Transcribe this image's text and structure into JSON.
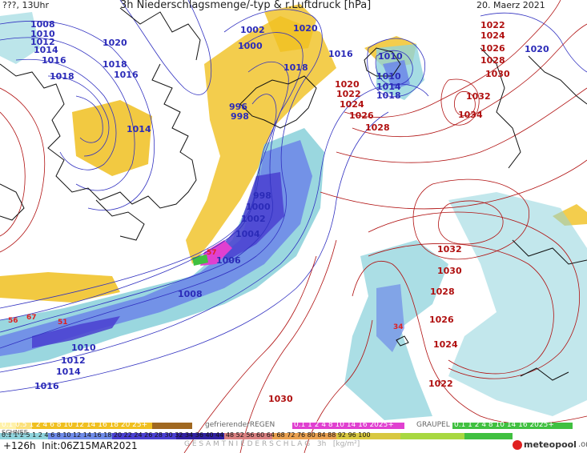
{
  "header": {
    "left": "???, 13Uhr",
    "title": "3h Niederschlagsmenge/-typ & r.Luftdruck [hPa]",
    "date": "20. Maerz 2021"
  },
  "footer": {
    "run": "+126h  Init:06Z15MAR2021",
    "total_label": "G E S A M T N I E D E R S C H L A G   3h   [kg/m²]",
    "brand": "meteopool",
    "brand_tld": ".org"
  },
  "legend": {
    "snow_label": "SCHNEE",
    "freezing_rain_label": "gefrierenderREGEN",
    "graupel_label": "GRAUPEL",
    "snow_scale": "0.1 0.5 1 2 4 6 8 10 12 14 16 18 20 25+",
    "freezing_scale": "0.1 1 2 4 8 10 14 16 2025+",
    "graupel_scale": "0.1 1 2 4 8 10 14 16 2025+",
    "rain_scale": "0.1 1 2 5 1 2 4 6 8 10 12 14 16 18 20 22 24 26 28 30 32 34 36 40 44 48 52 56 60 64 68 72 76 80 84 88 92 96 100"
  },
  "colors": {
    "snow": "#f0c020",
    "rain_light": "#8fd3dc",
    "rain_mid": "#6f8be8",
    "rain_heavy": "#4a3fd0",
    "freezing": "#e040d0",
    "graupel": "#40c040",
    "isobar_low": "#3030c0",
    "isobar_high": "#b01010",
    "coast": "#111111"
  },
  "pressure_labels_low": [
    "1008",
    "1010",
    "1012",
    "1014",
    "1016",
    "1018",
    "1020",
    "1018",
    "1016",
    "1014",
    "1002",
    "1000",
    "1020",
    "1016",
    "1018",
    "996",
    "998",
    "998",
    "1000",
    "1002",
    "1004",
    "1006",
    "1008",
    "1010",
    "1012",
    "1014",
    "1016",
    "1014",
    "1010",
    "1014",
    "1018",
    "1020"
  ],
  "pressure_labels_high": [
    "1024",
    "1026",
    "1028",
    "1030",
    "1032",
    "1034",
    "1020",
    "1022",
    "1024",
    "1026",
    "1028",
    "1032",
    "1030",
    "1028",
    "1026",
    "1024",
    "1022",
    "1030"
  ],
  "precip_values": [
    "56",
    "67",
    "51",
    "57",
    "34"
  ]
}
